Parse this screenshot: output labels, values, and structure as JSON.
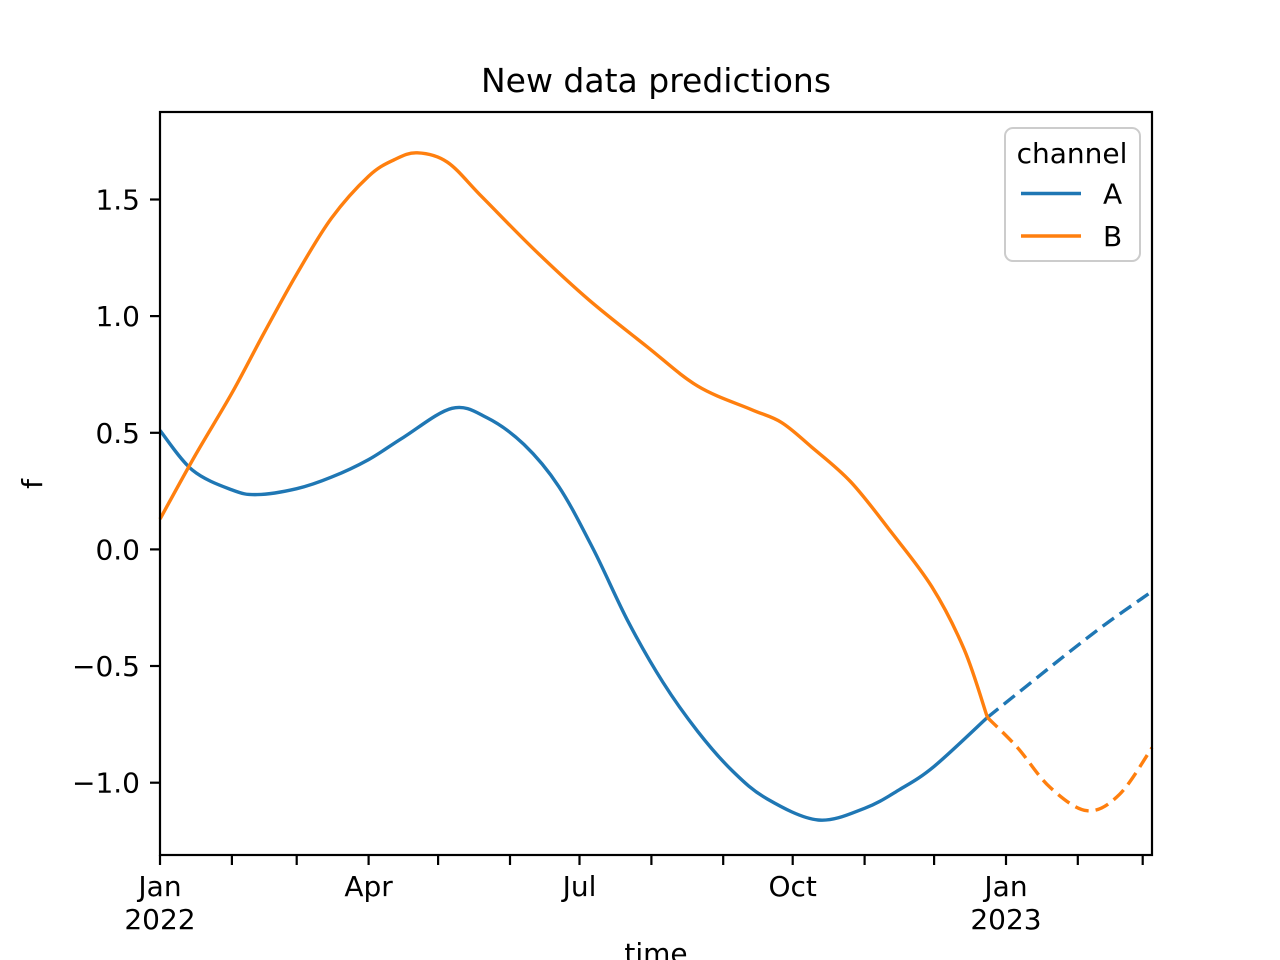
{
  "chart_data": {
    "type": "line",
    "title": "New data predictions",
    "xlabel": "time",
    "ylabel": "f",
    "xlim": [
      "2022-01-01",
      "2023-03-05"
    ],
    "ylim": [
      -1.31,
      1.875
    ],
    "grid": false,
    "colors": {
      "channel_a": "#1f77b4",
      "channel_b": "#ff7f0e",
      "axis": "#000000",
      "background": "#ffffff",
      "legend_border": "#cccccc"
    },
    "legend": {
      "title": "channel",
      "position": "upper right",
      "entries": [
        {
          "label": "A",
          "color": "#1f77b4"
        },
        {
          "label": "B",
          "color": "#ff7f0e"
        }
      ]
    },
    "x_ticks": [
      {
        "date": "2022-01-01",
        "label": "Jan",
        "year": "2022"
      },
      {
        "date": "2022-02-01"
      },
      {
        "date": "2022-03-01"
      },
      {
        "date": "2022-04-01",
        "label": "Apr"
      },
      {
        "date": "2022-05-01"
      },
      {
        "date": "2022-06-01"
      },
      {
        "date": "2022-07-01",
        "label": "Jul"
      },
      {
        "date": "2022-08-01"
      },
      {
        "date": "2022-09-01"
      },
      {
        "date": "2022-10-01",
        "label": "Oct"
      },
      {
        "date": "2022-11-01"
      },
      {
        "date": "2022-12-01"
      },
      {
        "date": "2023-01-01",
        "label": "Jan",
        "year": "2023"
      },
      {
        "date": "2023-02-01"
      },
      {
        "date": "2023-03-01"
      }
    ],
    "y_ticks": [
      {
        "value": 1.5,
        "label": "1.5"
      },
      {
        "value": 1.0,
        "label": "1.0"
      },
      {
        "value": 0.5,
        "label": "0.5"
      },
      {
        "value": 0.0,
        "label": "0.0"
      },
      {
        "value": -0.5,
        "label": "−0.5"
      },
      {
        "value": -1.0,
        "label": "−1.0"
      }
    ],
    "series": [
      {
        "id": "A-observed",
        "channel": "A",
        "style": "solid",
        "color": "#1f77b4",
        "points": [
          [
            "2022-01-01",
            0.51
          ],
          [
            "2022-01-15",
            0.34
          ],
          [
            "2022-02-01",
            0.255
          ],
          [
            "2022-02-12",
            0.235
          ],
          [
            "2022-03-01",
            0.26
          ],
          [
            "2022-03-16",
            0.31
          ],
          [
            "2022-04-01",
            0.385
          ],
          [
            "2022-04-16",
            0.48
          ],
          [
            "2022-05-07",
            0.605
          ],
          [
            "2022-05-22",
            0.565
          ],
          [
            "2022-06-07",
            0.45
          ],
          [
            "2022-06-22",
            0.27
          ],
          [
            "2022-07-07",
            0.0
          ],
          [
            "2022-07-22",
            -0.31
          ],
          [
            "2022-08-06",
            -0.57
          ],
          [
            "2022-08-21",
            -0.78
          ],
          [
            "2022-09-05",
            -0.95
          ],
          [
            "2022-09-20",
            -1.07
          ],
          [
            "2022-10-12",
            -1.16
          ],
          [
            "2022-11-01",
            -1.11
          ],
          [
            "2022-11-16",
            -1.03
          ],
          [
            "2022-12-01",
            -0.93
          ],
          [
            "2022-12-24",
            -0.72
          ]
        ]
      },
      {
        "id": "A-predicted",
        "channel": "A",
        "style": "dashed",
        "color": "#1f77b4",
        "points": [
          [
            "2022-12-24",
            -0.72
          ],
          [
            "2023-01-10",
            -0.585
          ],
          [
            "2023-01-27",
            -0.45
          ],
          [
            "2023-02-13",
            -0.32
          ],
          [
            "2023-03-05",
            -0.18
          ]
        ]
      },
      {
        "id": "B-observed",
        "channel": "B",
        "style": "solid",
        "color": "#ff7f0e",
        "points": [
          [
            "2022-01-01",
            0.13
          ],
          [
            "2022-01-16",
            0.4
          ],
          [
            "2022-02-01",
            0.67
          ],
          [
            "2022-02-15",
            0.93
          ],
          [
            "2022-03-01",
            1.18
          ],
          [
            "2022-03-16",
            1.42
          ],
          [
            "2022-04-01",
            1.6
          ],
          [
            "2022-04-12",
            1.67
          ],
          [
            "2022-04-22",
            1.7
          ],
          [
            "2022-05-05",
            1.66
          ],
          [
            "2022-05-20",
            1.51
          ],
          [
            "2022-06-12",
            1.28
          ],
          [
            "2022-07-05",
            1.07
          ],
          [
            "2022-07-30",
            0.87
          ],
          [
            "2022-08-21",
            0.7
          ],
          [
            "2022-09-13",
            0.6
          ],
          [
            "2022-09-26",
            0.545
          ],
          [
            "2022-10-09",
            0.44
          ],
          [
            "2022-10-26",
            0.29
          ],
          [
            "2022-11-12",
            0.08
          ],
          [
            "2022-11-30",
            -0.16
          ],
          [
            "2022-12-14",
            -0.43
          ],
          [
            "2022-12-24",
            -0.72
          ]
        ]
      },
      {
        "id": "B-predicted",
        "channel": "B",
        "style": "dashed",
        "color": "#ff7f0e",
        "points": [
          [
            "2022-12-24",
            -0.72
          ],
          [
            "2023-01-06",
            -0.85
          ],
          [
            "2023-01-20",
            -1.02
          ],
          [
            "2023-02-05",
            -1.12
          ],
          [
            "2023-02-19",
            -1.05
          ],
          [
            "2023-03-05",
            -0.85
          ]
        ]
      }
    ]
  }
}
